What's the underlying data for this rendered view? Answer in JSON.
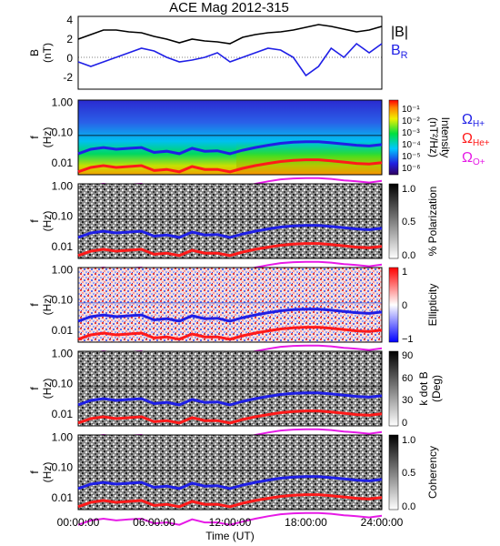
{
  "title": "ACE Mag 2012-315",
  "x_axis": {
    "label": "Time (UT)",
    "ticks": [
      "00:00:00",
      "06:00:00",
      "12:00:00",
      "18:00:00",
      "24:00:00"
    ]
  },
  "freq_ticks": [
    "1.00",
    "0.10",
    "0.01"
  ],
  "gyro_legend": [
    {
      "sym": "Ω",
      "sub": "H+",
      "color": "#1f1fe6"
    },
    {
      "sym": "Ω",
      "sub": "He+",
      "color": "#ff1a1a"
    },
    {
      "sym": "Ω",
      "sub": "O+",
      "color": "#e61ae6"
    }
  ],
  "field_legend": [
    {
      "label": "|B|",
      "color": "#000000"
    },
    {
      "label": "B",
      "sub": "R",
      "color": "#1f1fe6"
    }
  ],
  "panels": {
    "b_field": {
      "ylabel": "B",
      "yunit": "(nT)",
      "yticks": [
        "4",
        "2",
        "0",
        "-2"
      ]
    },
    "intensity": {
      "ylabel": "f",
      "yunit": "(Hz)",
      "cb_label": "Intensity",
      "cb_unit": "(nT²/Hz)",
      "cb_ticks": [
        "10⁻¹",
        "10⁻²",
        "10⁻³",
        "10⁻⁴",
        "10⁻⁵",
        "10⁻⁶"
      ]
    },
    "polarization": {
      "ylabel": "f",
      "yunit": "(Hz)",
      "cb_label": "% Polarization",
      "cb_unit": "",
      "cb_ticks": [
        "1.0",
        "0.5",
        "0.0"
      ]
    },
    "ellipticity": {
      "ylabel": "f",
      "yunit": "(Hz)",
      "cb_label": "Ellipticity",
      "cb_unit": "",
      "cb_ticks": [
        "1",
        "0",
        "−1"
      ]
    },
    "kdotb": {
      "ylabel": "f",
      "yunit": "(Hz)",
      "cb_label": "k dot B",
      "cb_unit": "(Deg)",
      "cb_ticks": [
        "90",
        "60",
        "30",
        "0"
      ]
    },
    "coherency": {
      "ylabel": "f",
      "yunit": "(Hz)",
      "cb_label": "Coherency",
      "cb_unit": "",
      "cb_ticks": [
        "1.0",
        "0.5",
        "0.0"
      ]
    }
  },
  "chart_data": [
    {
      "type": "line",
      "panel": "b_field",
      "x": [
        0,
        1,
        2,
        3,
        4,
        5,
        6,
        7,
        8,
        9,
        10,
        11,
        12,
        13,
        14,
        15,
        16,
        17,
        18,
        19,
        20,
        21,
        22,
        23,
        24
      ],
      "series": [
        {
          "name": "|B|",
          "color": "#000000",
          "values": [
            2.0,
            2.5,
            3.0,
            3.0,
            2.8,
            2.7,
            2.3,
            2.0,
            1.6,
            2.0,
            1.8,
            1.7,
            1.5,
            2.2,
            2.5,
            2.7,
            2.8,
            3.0,
            3.3,
            3.6,
            3.4,
            3.1,
            2.8,
            3.0,
            3.4
          ]
        },
        {
          "name": "B_R",
          "color": "#1f1fe6",
          "values": [
            -0.5,
            -1.0,
            -0.5,
            0.0,
            0.5,
            1.0,
            0.7,
            0.0,
            -0.5,
            -0.3,
            0.0,
            0.5,
            -0.5,
            0.0,
            0.5,
            1.0,
            0.8,
            0.0,
            -2.0,
            -1.0,
            1.0,
            0.0,
            1.5,
            0.5,
            1.5
          ]
        }
      ],
      "xlim": [
        0,
        24
      ],
      "ylim": [
        -3.5,
        4.5
      ]
    },
    {
      "type": "line",
      "panel": "gyrofrequencies",
      "x": [
        0,
        1,
        2,
        3,
        4,
        5,
        6,
        7,
        8,
        9,
        10,
        11,
        12,
        13,
        14,
        15,
        16,
        17,
        18,
        19,
        20,
        21,
        22,
        23,
        24
      ],
      "series": [
        {
          "name": "ΩH+",
          "color": "#1f1fe6",
          "values": [
            0.02,
            0.028,
            0.032,
            0.028,
            0.03,
            0.032,
            0.022,
            0.024,
            0.02,
            0.03,
            0.024,
            0.025,
            0.02,
            0.026,
            0.032,
            0.038,
            0.044,
            0.048,
            0.05,
            0.05,
            0.046,
            0.042,
            0.038,
            0.036,
            0.04
          ]
        },
        {
          "name": "ΩHe+",
          "color": "#ff1a1a",
          "values": [
            0.005,
            0.007,
            0.008,
            0.007,
            0.0075,
            0.008,
            0.0055,
            0.006,
            0.005,
            0.0075,
            0.006,
            0.006,
            0.005,
            0.0065,
            0.008,
            0.0095,
            0.011,
            0.012,
            0.0125,
            0.0125,
            0.0115,
            0.0105,
            0.0095,
            0.009,
            0.01
          ]
        },
        {
          "name": "ΩO+",
          "color": "#e61ae6",
          "values": [
            0.00125,
            0.00175,
            0.002,
            0.00175,
            0.0019,
            0.002,
            0.0014,
            0.0015,
            0.00125,
            0.0019,
            0.0015,
            0.0015,
            0.00125,
            0.0016,
            0.002,
            0.0024,
            0.0028,
            0.003,
            0.0031,
            0.0031,
            0.0029,
            0.0026,
            0.0024,
            0.0022,
            0.0025
          ]
        }
      ],
      "xlim": [
        0,
        24
      ],
      "ylim": [
        0.004,
        1.2
      ],
      "yscale": "log"
    }
  ]
}
